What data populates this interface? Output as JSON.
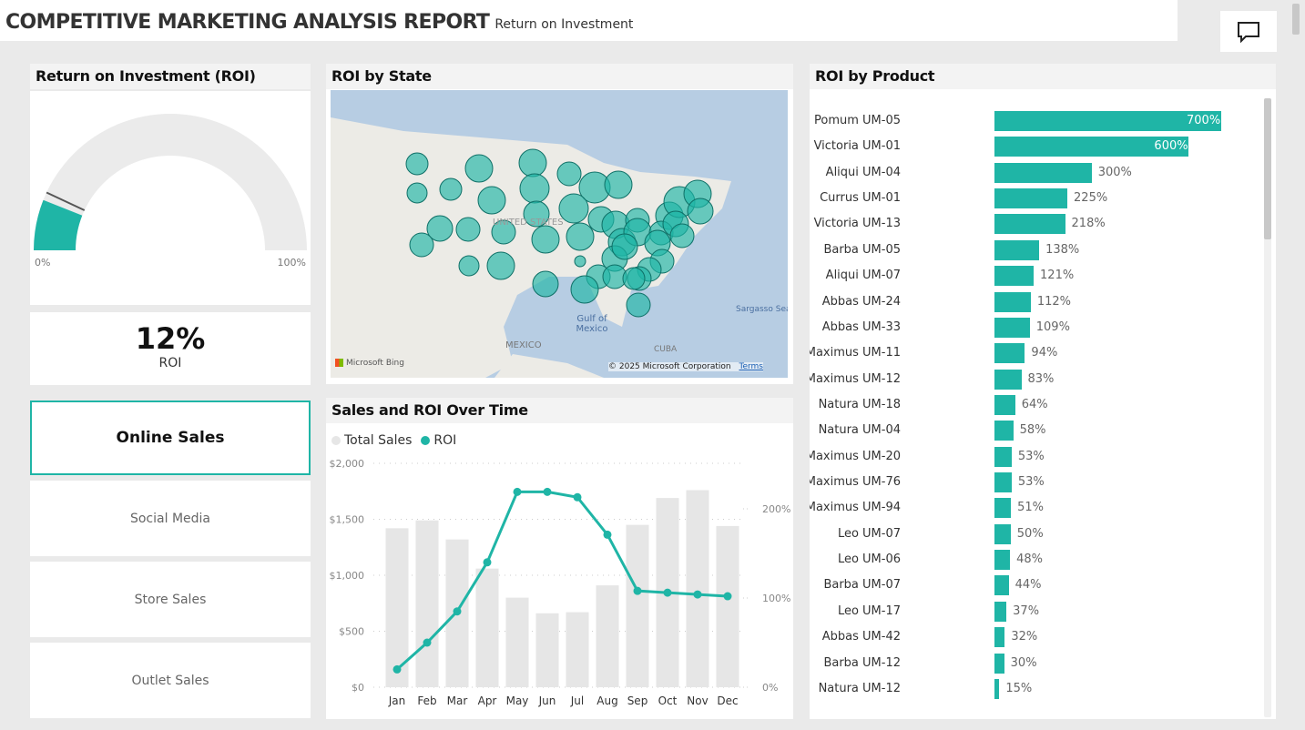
{
  "header": {
    "title": "COMPETITIVE MARKETING ANALYSIS REPORT",
    "subtitle": "Return on Investment",
    "comment_icon": "comment-icon"
  },
  "gauge": {
    "title": "Return on Investment (ROI)",
    "min_label": "0%",
    "max_label": "100%",
    "value": 0.12,
    "color": "#1fb5a6"
  },
  "kpi": {
    "value": "12%",
    "label": "ROI"
  },
  "nav": [
    {
      "label": "Online Sales",
      "selected": true
    },
    {
      "label": "Social Media"
    },
    {
      "label": "Store Sales"
    },
    {
      "label": "Outlet Sales"
    }
  ],
  "map": {
    "title": "ROI by State",
    "labels": {
      "us": "UNITED STATES",
      "mexico": "MEXICO",
      "gulf": "Gulf of Mexico",
      "cuba": "CUBA",
      "sargasso": "Sargasso Sea"
    },
    "attribution": "Microsoft Bing",
    "copyright": "© 2025 Microsoft Corporation",
    "terms": "Terms"
  },
  "chart_data": {
    "type": "bar+line",
    "title": "Sales and ROI Over Time",
    "legend": [
      "Total Sales",
      "ROI"
    ],
    "categories": [
      "Jan",
      "Feb",
      "Mar",
      "Apr",
      "May",
      "Jun",
      "Jul",
      "Aug",
      "Sep",
      "Oct",
      "Nov",
      "Dec"
    ],
    "series": [
      {
        "name": "Total Sales",
        "type": "bar",
        "values": [
          1420,
          1490,
          1320,
          1060,
          800,
          660,
          670,
          910,
          1450,
          1690,
          1760,
          1440
        ],
        "color": "#e6e6e6"
      },
      {
        "name": "ROI",
        "type": "line",
        "values": [
          20,
          50,
          85,
          140,
          219,
          219,
          213,
          171,
          108,
          106,
          104,
          102
        ],
        "color": "#1fb5a6"
      }
    ],
    "y_left": {
      "ticks": [
        "$0",
        "$500",
        "$1,000",
        "$1,500",
        "$2,000"
      ],
      "range": [
        0,
        2000
      ]
    },
    "y_right": {
      "ticks": [
        "0%",
        "100%",
        "200%"
      ],
      "range": [
        0,
        251
      ]
    }
  },
  "products": {
    "title": "ROI by Product",
    "items": [
      {
        "name": "Pomum UM-05",
        "value": 700,
        "label": "700%"
      },
      {
        "name": "Victoria UM-01",
        "value": 600,
        "label": "600%"
      },
      {
        "name": "Aliqui UM-04",
        "value": 300,
        "label": "300%"
      },
      {
        "name": "Currus UM-01",
        "value": 225,
        "label": "225%"
      },
      {
        "name": "Victoria UM-13",
        "value": 218,
        "label": "218%"
      },
      {
        "name": "Barba UM-05",
        "value": 138,
        "label": "138%"
      },
      {
        "name": "Aliqui UM-07",
        "value": 121,
        "label": "121%"
      },
      {
        "name": "Abbas UM-24",
        "value": 112,
        "label": "112%"
      },
      {
        "name": "Abbas UM-33",
        "value": 109,
        "label": "109%"
      },
      {
        "name": "Maximus UM-11",
        "value": 94,
        "label": "94%"
      },
      {
        "name": "Maximus UM-12",
        "value": 83,
        "label": "83%"
      },
      {
        "name": "Natura UM-18",
        "value": 64,
        "label": "64%"
      },
      {
        "name": "Natura UM-04",
        "value": 58,
        "label": "58%"
      },
      {
        "name": "Maximus UM-20",
        "value": 53,
        "label": "53%"
      },
      {
        "name": "Maximus UM-76",
        "value": 53,
        "label": "53%"
      },
      {
        "name": "Maximus UM-94",
        "value": 51,
        "label": "51%"
      },
      {
        "name": "Leo UM-07",
        "value": 50,
        "label": "50%"
      },
      {
        "name": "Leo UM-06",
        "value": 48,
        "label": "48%"
      },
      {
        "name": "Barba UM-07",
        "value": 44,
        "label": "44%"
      },
      {
        "name": "Leo UM-17",
        "value": 37,
        "label": "37%"
      },
      {
        "name": "Abbas UM-42",
        "value": 32,
        "label": "32%"
      },
      {
        "name": "Barba UM-12",
        "value": 30,
        "label": "30%"
      },
      {
        "name": "Natura UM-12",
        "value": 15,
        "label": "15%"
      }
    ]
  }
}
